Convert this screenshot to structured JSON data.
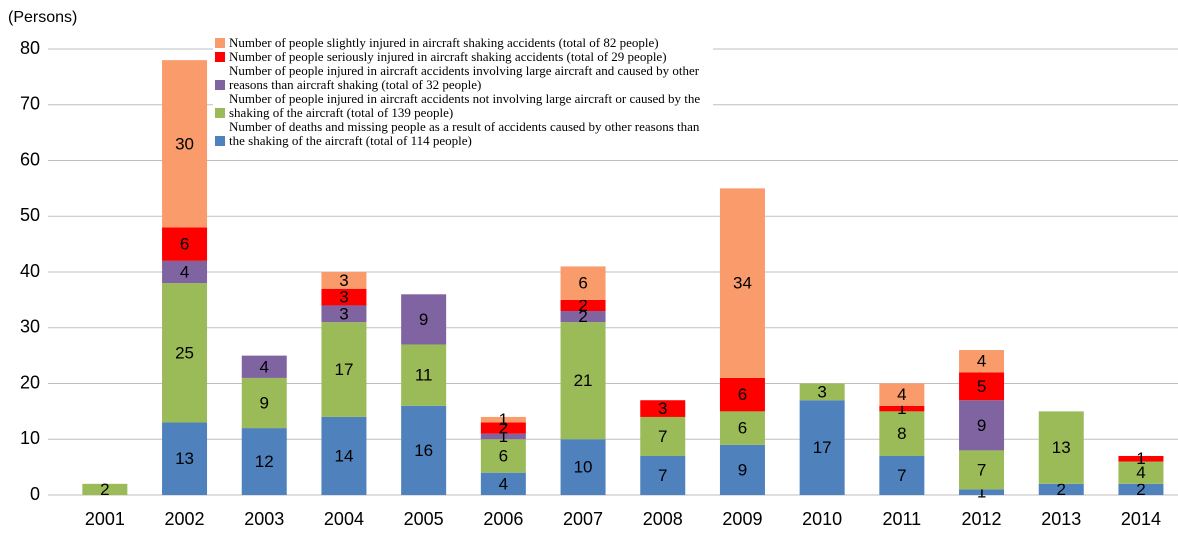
{
  "chart_data": {
    "type": "stacked_bar",
    "y_axis_label": "(Persons)",
    "categories": [
      "2001",
      "2002",
      "2003",
      "2004",
      "2005",
      "2006",
      "2007",
      "2008",
      "2009",
      "2010",
      "2011",
      "2012",
      "2013",
      "2014"
    ],
    "series": [
      {
        "name": "Number of deaths and missing people as a result of accidents caused by other reasons than the shaking of the aircraft (total of 114 people)",
        "color": "#4f81bd",
        "values": [
          null,
          13,
          12,
          14,
          16,
          4,
          10,
          7,
          9,
          17,
          7,
          1,
          2,
          2
        ]
      },
      {
        "name": "Number of people injured in aircraft accidents not involving large aircraft or caused by the shaking of the aircraft (total of 139 people)",
        "color": "#9bbb59",
        "values": [
          2,
          25,
          9,
          17,
          11,
          6,
          21,
          7,
          6,
          3,
          8,
          7,
          13,
          4
        ]
      },
      {
        "name": "Number of people injured in aircraft accidents involving large aircraft and caused by other reasons than aircraft shaking (total of 32 people)",
        "color": "#8064a2",
        "values": [
          null,
          4,
          4,
          3,
          9,
          1,
          2,
          null,
          null,
          null,
          null,
          9,
          null,
          null
        ]
      },
      {
        "name": "Number of people seriously injured in aircraft shaking accidents (total of 29 people)",
        "color": "#ff0000",
        "values": [
          null,
          6,
          null,
          3,
          null,
          2,
          2,
          3,
          6,
          null,
          1,
          5,
          null,
          1
        ]
      },
      {
        "name": "Number of people slightly injured in aircraft shaking accidents (total of 82 people)",
        "color": "#f99b6b",
        "values": [
          null,
          30,
          null,
          3,
          null,
          1,
          6,
          null,
          34,
          null,
          4,
          4,
          null,
          null
        ]
      }
    ],
    "ylim": [
      0,
      80
    ],
    "yticks": [
      0,
      10,
      20,
      30,
      40,
      50,
      60,
      70,
      80
    ],
    "grid": true
  }
}
